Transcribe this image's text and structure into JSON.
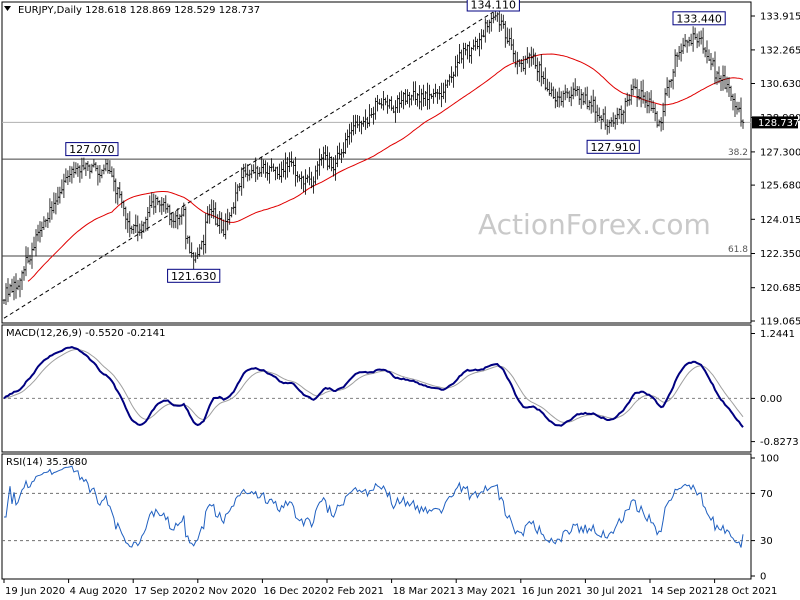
{
  "chart_data": [
    {
      "type": "candlestick",
      "panel": "price",
      "header": "EURJPY,Daily  128.618 128.869 128.529 128.737",
      "last_price_label": "128.737",
      "last_price": 128.737,
      "ylim": [
        119.065,
        134.5
      ],
      "y_ticks": [
        133.915,
        132.265,
        130.63,
        128.98,
        127.3,
        125.68,
        124.015,
        122.35,
        120.685,
        119.065
      ],
      "y_tick_labels": [
        "133.915",
        "132.265",
        "130.630",
        "128.980",
        "127.300",
        "125.680",
        "124.015",
        "122.350",
        "120.685",
        "119.065"
      ],
      "x_tick_labels": [
        "19 Jun 2020",
        "4 Aug 2020",
        "17 Sep 2020",
        "2 Nov 2020",
        "16 Dec 2020",
        "2 Feb 2021",
        "18 Mar 2021",
        "3 May 2021",
        "16 Jun 2021",
        "30 Jul 2021",
        "14 Sep 2021",
        "28 Oct 2021"
      ],
      "close_anchors": [
        [
          "2020-06-19",
          120.3
        ],
        [
          "2020-07-01",
          121.0
        ],
        [
          "2020-07-15",
          123.5
        ],
        [
          "2020-07-28",
          125.2
        ],
        [
          "2020-08-04",
          126.2
        ],
        [
          "2020-08-14",
          126.7
        ],
        [
          "2020-08-25",
          126.4
        ],
        [
          "2020-09-01",
          126.5
        ],
        [
          "2020-09-10",
          125.0
        ],
        [
          "2020-09-17",
          123.6
        ],
        [
          "2020-09-25",
          123.6
        ],
        [
          "2020-10-01",
          124.7
        ],
        [
          "2020-10-09",
          124.9
        ],
        [
          "2020-10-16",
          124.0
        ],
        [
          "2020-10-23",
          124.4
        ],
        [
          "2020-10-30",
          121.9
        ],
        [
          "2020-11-05",
          122.8
        ],
        [
          "2020-11-12",
          124.6
        ],
        [
          "2020-11-20",
          123.5
        ],
        [
          "2020-11-27",
          124.7
        ],
        [
          "2020-12-04",
          126.2
        ],
        [
          "2020-12-11",
          126.3
        ],
        [
          "2020-12-18",
          126.6
        ],
        [
          "2020-12-31",
          126.3
        ],
        [
          "2021-01-08",
          126.8
        ],
        [
          "2021-01-15",
          125.7
        ],
        [
          "2021-01-22",
          125.9
        ],
        [
          "2021-01-29",
          127.1
        ],
        [
          "2021-02-05",
          126.7
        ],
        [
          "2021-02-12",
          127.2
        ],
        [
          "2021-02-19",
          128.5
        ],
        [
          "2021-02-26",
          128.6
        ],
        [
          "2021-03-05",
          129.2
        ],
        [
          "2021-03-12",
          129.9
        ],
        [
          "2021-03-19",
          129.5
        ],
        [
          "2021-03-26",
          130.0
        ],
        [
          "2021-04-01",
          130.0
        ],
        [
          "2021-04-09",
          129.9
        ],
        [
          "2021-04-16",
          130.1
        ],
        [
          "2021-04-23",
          130.1
        ],
        [
          "2021-04-30",
          131.1
        ],
        [
          "2021-05-07",
          132.2
        ],
        [
          "2021-05-14",
          132.2
        ],
        [
          "2021-05-21",
          132.9
        ],
        [
          "2021-05-28",
          133.9
        ],
        [
          "2021-06-04",
          133.7
        ],
        [
          "2021-06-10",
          132.5
        ],
        [
          "2021-06-16",
          131.4
        ],
        [
          "2021-06-24",
          132.1
        ],
        [
          "2021-07-02",
          131.1
        ],
        [
          "2021-07-09",
          130.1
        ],
        [
          "2021-07-16",
          130.0
        ],
        [
          "2021-07-23",
          130.3
        ],
        [
          "2021-07-30",
          129.9
        ],
        [
          "2021-08-06",
          129.7
        ],
        [
          "2021-08-13",
          129.0
        ],
        [
          "2021-08-20",
          128.5
        ],
        [
          "2021-08-27",
          129.4
        ],
        [
          "2021-09-03",
          130.2
        ],
        [
          "2021-09-10",
          130.1
        ],
        [
          "2021-09-17",
          129.4
        ],
        [
          "2021-09-22",
          128.6
        ],
        [
          "2021-09-28",
          130.5
        ],
        [
          "2021-10-05",
          132.0
        ],
        [
          "2021-10-12",
          132.8
        ],
        [
          "2021-10-19",
          132.9
        ],
        [
          "2021-10-26",
          132.1
        ],
        [
          "2021-11-02",
          131.0
        ],
        [
          "2021-11-09",
          130.5
        ],
        [
          "2021-11-16",
          129.4
        ],
        [
          "2021-11-19",
          128.737
        ]
      ],
      "sma_period": 55,
      "fib_levels": [
        {
          "label": "38.2",
          "value": 126.95
        },
        {
          "label": "61.8",
          "value": 122.23
        }
      ],
      "annotations": [
        {
          "label": "127.070",
          "date": "2020-08-20",
          "value": 127.07,
          "anchor": "top"
        },
        {
          "label": "121.630",
          "date": "2020-10-30",
          "value": 121.63,
          "anchor": "bottom"
        },
        {
          "label": "134.110",
          "date": "2021-05-28",
          "value": 134.11,
          "anchor": "top"
        },
        {
          "label": "127.910",
          "date": "2021-08-20",
          "value": 127.91,
          "anchor": "bottom"
        },
        {
          "label": "133.440",
          "date": "2021-10-20",
          "value": 133.44,
          "anchor": "top"
        }
      ],
      "channel": {
        "start": [
          "2020-06-19",
          119.2
        ],
        "end": [
          "2021-05-28",
          134.11
        ]
      },
      "watermark": "ActionForex.com",
      "colors": {
        "candle": "#000000",
        "sma": "#e00000",
        "fib": "#404040",
        "channel": "#000000"
      }
    },
    {
      "type": "line",
      "panel": "macd",
      "header": "MACD(12,26,9) -0.5520 -0.2141",
      "macd": -0.552,
      "signal": -0.2141,
      "ylim": [
        -0.95,
        1.35
      ],
      "y_tick_labels": [
        "1.2441",
        "0.00",
        "-0.8273"
      ],
      "y_tick_values": [
        1.2441,
        0.0,
        -0.8273
      ],
      "colors": {
        "macd": "#000080",
        "signal": "#a0a0a0",
        "zero": "#808080"
      }
    },
    {
      "type": "line",
      "panel": "rsi",
      "header": "RSI(14) 35.3680",
      "rsi": 35.368,
      "ylim": [
        0,
        100
      ],
      "y_tick_labels": [
        "100",
        "70",
        "30",
        "0"
      ],
      "y_tick_values": [
        100,
        70,
        30,
        0
      ],
      "levels": [
        70,
        30
      ],
      "colors": {
        "rsi": "#2060c0",
        "levels": "#707070"
      }
    }
  ]
}
